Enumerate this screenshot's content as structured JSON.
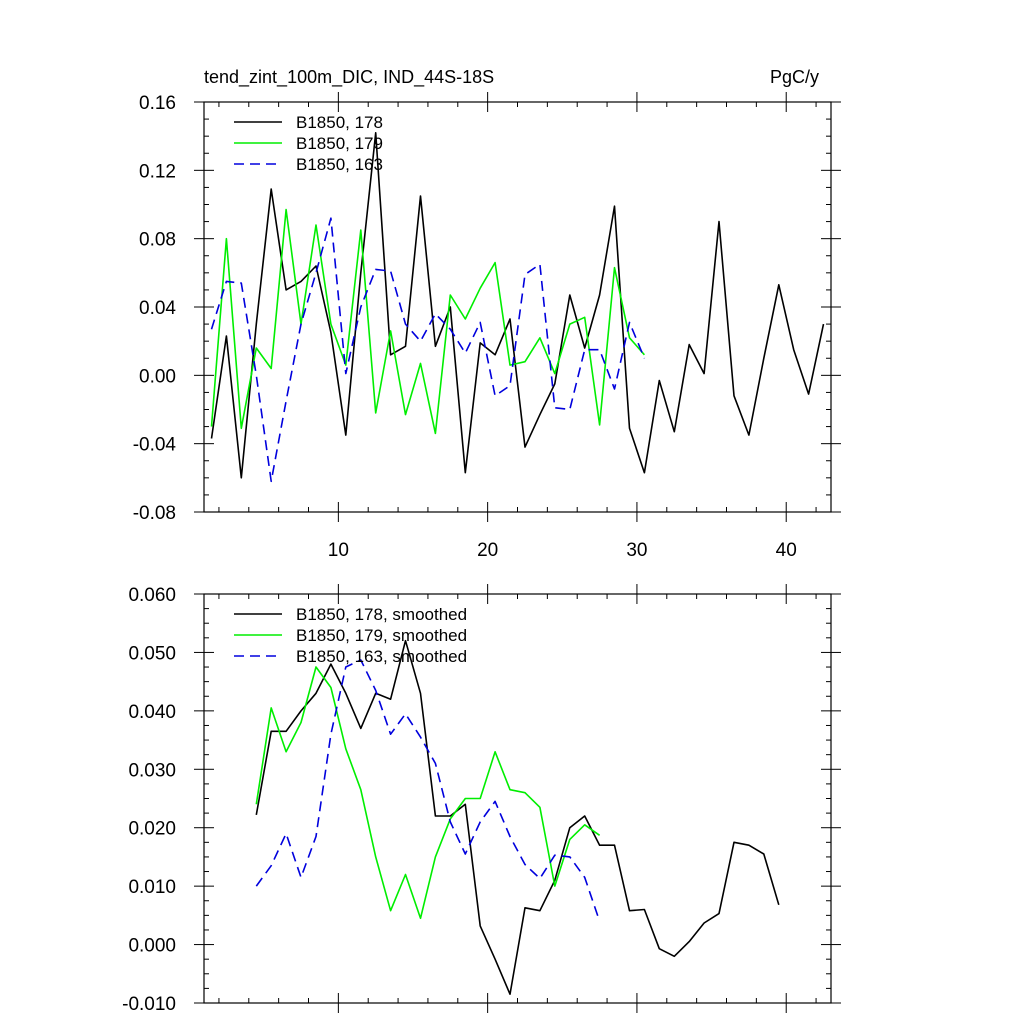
{
  "chart_data": [
    {
      "type": "line",
      "title": "tend_zint_100m_DIC, IND_44S-18S",
      "units": "PgC/y",
      "xlim": [
        1,
        43
      ],
      "ylim": [
        -0.08,
        0.16
      ],
      "xticks": [
        10,
        20,
        30,
        40
      ],
      "xtick_labels": [
        "10",
        "20",
        "30",
        "40"
      ],
      "yticks": [
        -0.08,
        -0.04,
        0.0,
        0.04,
        0.08,
        0.12,
        0.16
      ],
      "ytick_labels": [
        "-0.08",
        "-0.04",
        "0.00",
        "0.04",
        "0.08",
        "0.12",
        "0.16"
      ],
      "legend_position": "top-left",
      "series": [
        {
          "name": "B1850, 178",
          "color": "#000000",
          "dash": "solid",
          "x_start": 1.5,
          "values": [
            -0.037,
            0.023,
            -0.06,
            0.03,
            0.109,
            0.05,
            0.055,
            0.064,
            0.025,
            -0.035,
            0.06,
            0.142,
            0.012,
            0.017,
            0.105,
            0.017,
            0.04,
            -0.057,
            0.019,
            0.012,
            0.033,
            -0.042,
            -0.023,
            -0.005,
            0.047,
            0.016,
            0.047,
            0.099,
            -0.031,
            -0.057,
            -0.003,
            -0.033,
            0.018,
            0.001,
            0.09,
            -0.012,
            -0.035,
            0.01,
            0.053,
            0.015,
            -0.011,
            0.03
          ]
        },
        {
          "name": "B1850, 179",
          "color": "#00ee00",
          "dash": "solid",
          "x_start": 1.5,
          "values": [
            -0.03,
            0.08,
            -0.031,
            0.016,
            0.004,
            0.097,
            0.03,
            0.088,
            0.03,
            0.006,
            0.085,
            -0.022,
            0.026,
            -0.023,
            0.007,
            -0.034,
            0.047,
            0.033,
            0.051,
            0.066,
            0.006,
            0.008,
            0.022,
            0.001,
            0.03,
            0.034,
            -0.029,
            0.063,
            0.022,
            0.012
          ]
        },
        {
          "name": "B1850, 163",
          "color": "#0000dd",
          "dash": "dashed",
          "x_start": 1.5,
          "values": [
            0.027,
            0.055,
            0.054,
            0.0,
            -0.062,
            -0.015,
            0.03,
            0.06,
            0.092,
            0.001,
            0.04,
            0.062,
            0.061,
            0.03,
            0.02,
            0.036,
            0.027,
            0.013,
            0.031,
            -0.012,
            -0.006,
            0.059,
            0.065,
            -0.019,
            -0.02,
            0.015,
            0.015,
            -0.008,
            0.031,
            0.01
          ]
        }
      ]
    },
    {
      "type": "line",
      "xlim": [
        1,
        43
      ],
      "ylim": [
        -0.01,
        0.06
      ],
      "xticks": [
        10,
        20,
        30,
        40
      ],
      "yticks": [
        -0.01,
        0.0,
        0.01,
        0.02,
        0.03,
        0.04,
        0.05,
        0.06
      ],
      "ytick_labels": [
        "-0.010",
        "0.000",
        "0.010",
        "0.020",
        "0.030",
        "0.040",
        "0.050",
        "0.060"
      ],
      "legend_position": "top-left",
      "series": [
        {
          "name": "B1850, 178, smoothed",
          "color": "#000000",
          "dash": "solid",
          "x_start": 4.5,
          "values": [
            0.0222,
            0.0365,
            0.0365,
            0.04,
            0.043,
            0.048,
            0.043,
            0.037,
            0.043,
            0.042,
            0.052,
            0.043,
            0.022,
            0.022,
            0.024,
            0.0032,
            -0.0025,
            -0.0085,
            0.0063,
            0.0058,
            0.011,
            0.02,
            0.022,
            0.017,
            0.017,
            0.0058,
            0.006,
            -0.0007,
            -0.002,
            0.0005,
            0.0037,
            0.0053,
            0.0175,
            0.017,
            0.0155,
            0.0068
          ]
        },
        {
          "name": "B1850, 179, smoothed",
          "color": "#00ee00",
          "dash": "solid",
          "x_start": 4.5,
          "values": [
            0.024,
            0.0405,
            0.033,
            0.038,
            0.0475,
            0.044,
            0.0335,
            0.0265,
            0.015,
            0.0058,
            0.012,
            0.0045,
            0.015,
            0.0215,
            0.025,
            0.025,
            0.033,
            0.0265,
            0.026,
            0.0235,
            0.01,
            0.018,
            0.0205,
            0.0187
          ]
        },
        {
          "name": "B1850, 163, smoothed",
          "color": "#0000dd",
          "dash": "dashed",
          "x_start": 4.5,
          "values": [
            0.01,
            0.0135,
            0.019,
            0.0115,
            0.0185,
            0.036,
            0.0475,
            0.0487,
            0.0435,
            0.036,
            0.0395,
            0.0355,
            0.031,
            0.021,
            0.0155,
            0.021,
            0.0245,
            0.0185,
            0.0137,
            0.0113,
            0.0153,
            0.015,
            0.0115,
            0.004
          ]
        }
      ]
    }
  ]
}
